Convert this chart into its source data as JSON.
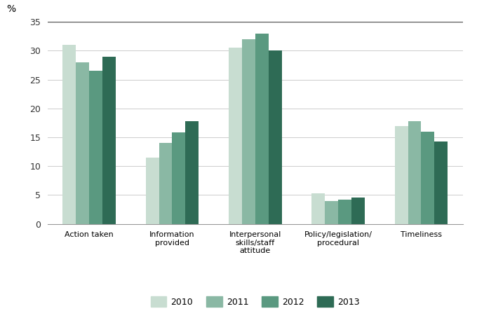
{
  "categories": [
    "Action taken",
    "Information\nprovided",
    "Interpersonal\nskills/staff\nattitude",
    "Policy/legislation/\nprocedural",
    "Timeliness"
  ],
  "series": {
    "2010": [
      31,
      11.5,
      30.5,
      5.3,
      17
    ],
    "2011": [
      28,
      14,
      32,
      4,
      17.8
    ],
    "2012": [
      26.5,
      15.8,
      33,
      4.2,
      16
    ],
    "2013": [
      29,
      17.8,
      30,
      4.6,
      14.3
    ]
  },
  "colors": {
    "2010": "#c8ddd1",
    "2011": "#8ab8a4",
    "2012": "#5a9980",
    "2013": "#2e6b55"
  },
  "ylim": [
    0,
    35
  ],
  "yticks": [
    0,
    5,
    10,
    15,
    20,
    25,
    30,
    35
  ],
  "ylabel": "%",
  "background_color": "#ffffff",
  "bar_width": 0.16,
  "legend_labels": [
    "2010",
    "2011",
    "2012",
    "2013"
  ]
}
